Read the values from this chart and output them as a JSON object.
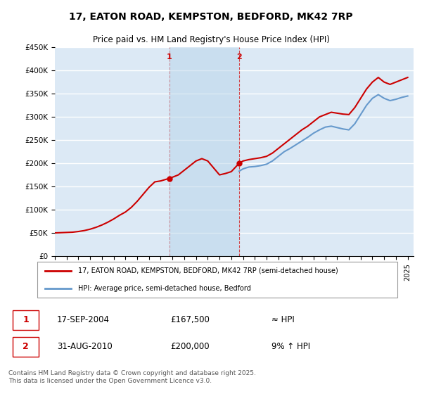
{
  "title1": "17, EATON ROAD, KEMPSTON, BEDFORD, MK42 7RP",
  "title2": "Price paid vs. HM Land Registry's House Price Index (HPI)",
  "ylabel_ticks": [
    "£0",
    "£50K",
    "£100K",
    "£150K",
    "£200K",
    "£250K",
    "£300K",
    "£350K",
    "£400K",
    "£450K"
  ],
  "ylim": [
    0,
    450000
  ],
  "xlim_start": 1995,
  "xlim_end": 2025.5,
  "background_color": "#dce9f5",
  "plot_bg_color": "#dce9f5",
  "grid_color": "#ffffff",
  "sale1_year": 2004.72,
  "sale1_price": 167500,
  "sale2_year": 2010.67,
  "sale2_price": 200000,
  "legend_label1": "17, EATON ROAD, KEMPSTON, BEDFORD, MK42 7RP (semi-detached house)",
  "legend_label2": "HPI: Average price, semi-detached house, Bedford",
  "annot1_date": "17-SEP-2004",
  "annot1_price": "£167,500",
  "annot1_hpi": "≈ HPI",
  "annot2_date": "31-AUG-2010",
  "annot2_price": "£200,000",
  "annot2_hpi": "9% ↑ HPI",
  "footer": "Contains HM Land Registry data © Crown copyright and database right 2025.\nThis data is licensed under the Open Government Licence v3.0.",
  "red_line_color": "#cc0000",
  "blue_line_color": "#6699cc",
  "vline_color": "#cc0000",
  "red_line_data": {
    "x": [
      1995,
      1995.5,
      1996,
      1996.5,
      1997,
      1997.5,
      1998,
      1998.5,
      1999,
      1999.5,
      2000,
      2000.5,
      2001,
      2001.5,
      2002,
      2002.5,
      2003,
      2003.5,
      2004,
      2004.72,
      2005,
      2005.5,
      2006,
      2006.5,
      2007,
      2007.5,
      2008,
      2008.5,
      2009,
      2009.5,
      2010,
      2010.67,
      2011,
      2011.5,
      2012,
      2012.5,
      2013,
      2013.5,
      2014,
      2014.5,
      2015,
      2015.5,
      2016,
      2016.5,
      2017,
      2017.5,
      2018,
      2018.5,
      2019,
      2019.5,
      2020,
      2020.5,
      2021,
      2021.5,
      2022,
      2022.5,
      2023,
      2023.5,
      2024,
      2024.5,
      2025
    ],
    "y": [
      50000,
      50500,
      51000,
      51500,
      53000,
      55000,
      58000,
      62000,
      67000,
      73000,
      80000,
      88000,
      95000,
      105000,
      118000,
      133000,
      148000,
      160000,
      162000,
      167500,
      170000,
      175000,
      185000,
      195000,
      205000,
      210000,
      205000,
      190000,
      175000,
      178000,
      182000,
      200000,
      205000,
      208000,
      210000,
      212000,
      215000,
      222000,
      232000,
      242000,
      252000,
      262000,
      272000,
      280000,
      290000,
      300000,
      305000,
      310000,
      308000,
      306000,
      305000,
      320000,
      340000,
      360000,
      375000,
      385000,
      375000,
      370000,
      375000,
      380000,
      385000
    ]
  },
  "blue_line_data": {
    "x": [
      2010.67,
      2011,
      2011.5,
      2012,
      2012.5,
      2013,
      2013.5,
      2014,
      2014.5,
      2015,
      2015.5,
      2016,
      2016.5,
      2017,
      2017.5,
      2018,
      2018.5,
      2019,
      2019.5,
      2020,
      2020.5,
      2021,
      2021.5,
      2022,
      2022.5,
      2023,
      2023.5,
      2024,
      2024.5,
      2025
    ],
    "y": [
      183000,
      188000,
      192000,
      193000,
      195000,
      198000,
      205000,
      215000,
      225000,
      232000,
      240000,
      248000,
      256000,
      265000,
      272000,
      278000,
      280000,
      277000,
      274000,
      272000,
      285000,
      305000,
      325000,
      340000,
      348000,
      340000,
      335000,
      338000,
      342000,
      345000
    ]
  }
}
